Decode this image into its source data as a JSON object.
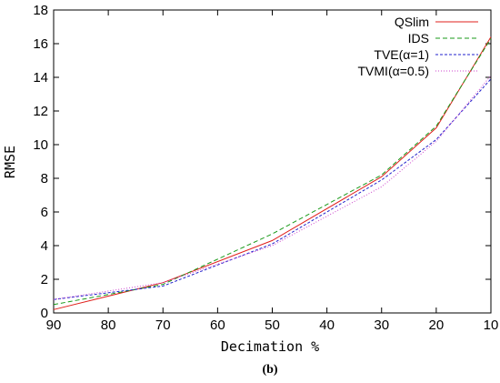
{
  "chart_data": {
    "type": "line",
    "xlabel": "Decimation %",
    "ylabel": "RMSE",
    "caption": "(b)",
    "x": [
      90,
      70,
      50,
      30,
      20,
      10
    ],
    "x_ticks": [
      90,
      80,
      70,
      60,
      50,
      40,
      30,
      20,
      10
    ],
    "y_ticks": [
      0,
      2,
      4,
      6,
      8,
      10,
      12,
      14,
      16,
      18
    ],
    "xlim": [
      90,
      10
    ],
    "ylim": [
      0,
      18
    ],
    "legend_position": "top-right",
    "grid": false,
    "series": [
      {
        "name": "QSlim",
        "color": "#e0201c",
        "dash": "solid",
        "values": [
          0.2,
          1.8,
          4.3,
          8.1,
          11.0,
          16.4
        ]
      },
      {
        "name": "IDS",
        "color": "#1a9a1a",
        "dash": "dashed",
        "values": [
          0.5,
          1.7,
          4.7,
          8.2,
          11.1,
          16.3
        ]
      },
      {
        "name": "TVE(α=1)",
        "color": "#2222cc",
        "dash": "dotted-dash",
        "values": [
          0.8,
          1.6,
          4.1,
          7.9,
          10.3,
          13.9
        ]
      },
      {
        "name": "TVMI(α=0.5)",
        "color": "#cc44cc",
        "dash": "dotted",
        "values": [
          0.8,
          1.8,
          4.0,
          7.5,
          10.2,
          14.1
        ]
      }
    ]
  }
}
